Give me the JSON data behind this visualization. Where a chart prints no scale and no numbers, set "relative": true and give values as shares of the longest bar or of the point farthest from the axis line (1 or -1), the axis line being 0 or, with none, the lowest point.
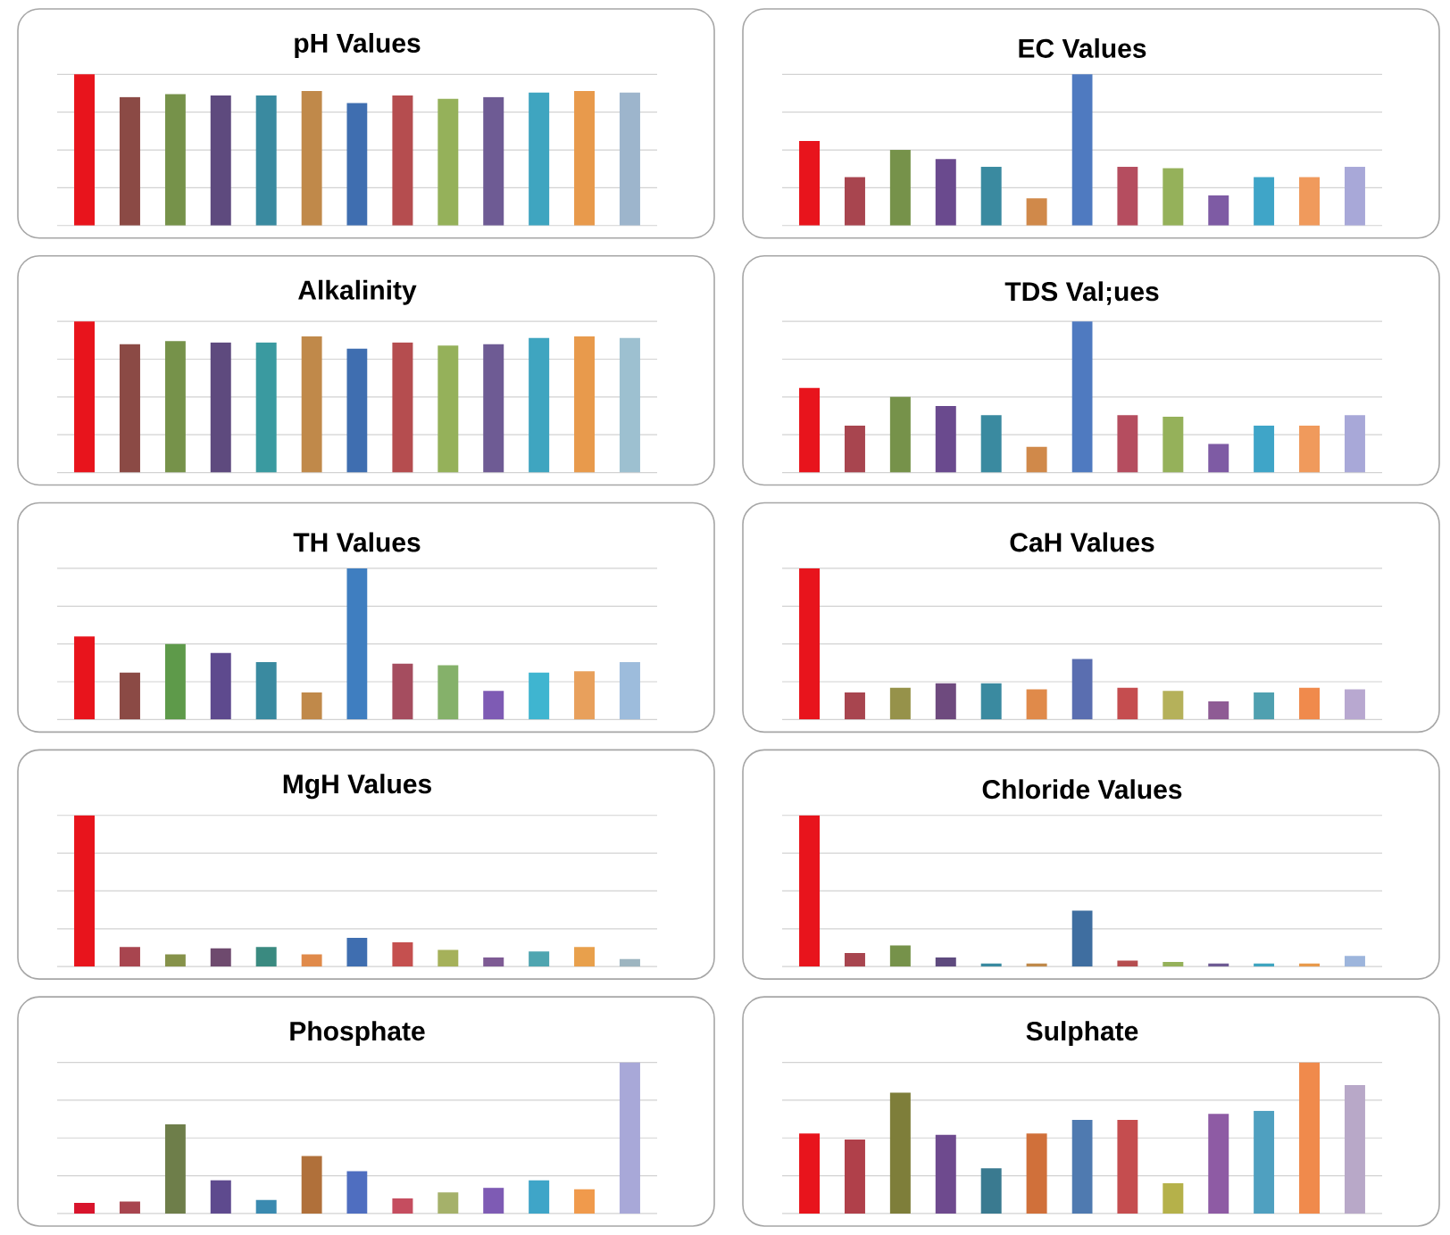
{
  "chart_data": [
    {
      "type": "bar",
      "title": "pH Values",
      "categories": [
        null,
        null,
        null,
        null,
        null,
        null,
        null,
        null,
        null,
        null,
        null,
        null,
        null
      ],
      "values": [
        1,
        0.85,
        0.87,
        0.86,
        0.86,
        0.89,
        0.81,
        0.86,
        0.84,
        0.85,
        0.88,
        0.89,
        0.88
      ],
      "colors": [
        "#e8141c",
        "#8b4a45",
        "#76924a",
        "#5e4a7e",
        "#3a8aa0",
        "#c0894a",
        "#3f6eb0",
        "#b54d4f",
        "#95b15a",
        "#6e5b94",
        "#3fa5c0",
        "#e89a4c",
        "#9db5cc"
      ],
      "relative": true,
      "grid": "y"
    },
    {
      "type": "bar",
      "title": "EC Values",
      "categories": [
        null,
        null,
        null,
        null,
        null,
        null,
        null,
        null,
        null,
        null,
        null,
        null,
        null
      ],
      "values": [
        0.56,
        0.32,
        0.5,
        0.44,
        0.39,
        0.18,
        1,
        0.39,
        0.38,
        0.2,
        0.32,
        0.32,
        0.39
      ],
      "colors": [
        "#e8141c",
        "#a8454f",
        "#76924a",
        "#6a4a8e",
        "#3a8aa0",
        "#d0894a",
        "#4f7ac0",
        "#b54d5f",
        "#95b15a",
        "#7e5ba4",
        "#3fa5c8",
        "#f09a5c",
        "#a8a8d8"
      ],
      "relative": true,
      "grid": "y"
    },
    {
      "type": "bar",
      "title": "Alkalinity",
      "categories": [
        null,
        null,
        null,
        null,
        null,
        null,
        null,
        null,
        null,
        null,
        null,
        null,
        null
      ],
      "values": [
        1,
        0.85,
        0.87,
        0.86,
        0.86,
        0.9,
        0.82,
        0.86,
        0.84,
        0.85,
        0.89,
        0.9,
        0.89
      ],
      "colors": [
        "#e8141c",
        "#8b4a45",
        "#76924a",
        "#5e4a7e",
        "#3a9aa0",
        "#c0894a",
        "#3f6eb0",
        "#b54d4f",
        "#95b15a",
        "#6e5b94",
        "#3fa5c0",
        "#e89a4c",
        "#9dc0d0"
      ],
      "relative": true,
      "grid": "y"
    },
    {
      "type": "bar",
      "title": "TDS Val;ues",
      "categories": [
        null,
        null,
        null,
        null,
        null,
        null,
        null,
        null,
        null,
        null,
        null,
        null,
        null
      ],
      "values": [
        0.56,
        0.31,
        0.5,
        0.44,
        0.38,
        0.17,
        1,
        0.38,
        0.37,
        0.19,
        0.31,
        0.31,
        0.38
      ],
      "colors": [
        "#e8141c",
        "#a8454f",
        "#76924a",
        "#6a4a8e",
        "#3a8aa0",
        "#d0894a",
        "#4f7ac0",
        "#b54d5f",
        "#95b15a",
        "#7e5ba4",
        "#3fa5c8",
        "#f09a5c",
        "#a8a8d8"
      ],
      "relative": true,
      "grid": "y"
    },
    {
      "type": "bar",
      "title": "TH Values",
      "categories": [
        null,
        null,
        null,
        null,
        null,
        null,
        null,
        null,
        null,
        null,
        null,
        null,
        null
      ],
      "values": [
        0.55,
        0.31,
        0.5,
        0.44,
        0.38,
        0.18,
        1,
        0.37,
        0.36,
        0.19,
        0.31,
        0.32,
        0.38
      ],
      "colors": [
        "#e8141c",
        "#8b4a45",
        "#5e9a4a",
        "#5e4a8e",
        "#3a8aa0",
        "#c0894a",
        "#3f7ec0",
        "#a54d5f",
        "#85b16a",
        "#7e5bb4",
        "#3fb5d0",
        "#e8a05c",
        "#9dbcdc"
      ],
      "relative": true,
      "grid": "y"
    },
    {
      "type": "bar",
      "title": "CaH Values",
      "categories": [
        null,
        null,
        null,
        null,
        null,
        null,
        null,
        null,
        null,
        null,
        null,
        null,
        null
      ],
      "values": [
        1,
        0.18,
        0.21,
        0.24,
        0.24,
        0.2,
        0.4,
        0.21,
        0.19,
        0.12,
        0.18,
        0.21,
        0.2
      ],
      "colors": [
        "#e8141c",
        "#a8454f",
        "#96924a",
        "#6e4a7e",
        "#3a8aa0",
        "#e08a4a",
        "#5a6eb0",
        "#c54d4f",
        "#b5b15a",
        "#8e5b94",
        "#4fa0b0",
        "#f08a4c",
        "#b8a8d0"
      ],
      "relative": true,
      "grid": "y"
    },
    {
      "type": "bar",
      "title": "MgH Values",
      "categories": [
        null,
        null,
        null,
        null,
        null,
        null,
        null,
        null,
        null,
        null,
        null,
        null,
        null
      ],
      "values": [
        1,
        0.13,
        0.08,
        0.12,
        0.13,
        0.08,
        0.19,
        0.16,
        0.11,
        0.06,
        0.1,
        0.13,
        0.05
      ],
      "colors": [
        "#e8141c",
        "#a8454f",
        "#86924a",
        "#6e4a6e",
        "#3a8a80",
        "#e08a4a",
        "#3f6eb0",
        "#c5504f",
        "#a5b15a",
        "#7e5b94",
        "#4fa5b0",
        "#e8a04c",
        "#9db5c0"
      ],
      "relative": true,
      "grid": "y"
    },
    {
      "type": "bar",
      "title": "Chloride Values",
      "categories": [
        null,
        null,
        null,
        null,
        null,
        null,
        null,
        null,
        null,
        null,
        null,
        null,
        null
      ],
      "values": [
        1,
        0.09,
        0.14,
        0.06,
        0.02,
        0.02,
        0.37,
        0.04,
        0.03,
        0.02,
        0.02,
        0.02,
        0.07
      ],
      "colors": [
        "#e8141c",
        "#a8454f",
        "#76924a",
        "#5e4a7e",
        "#3a8aa0",
        "#c0894a",
        "#3f6ea0",
        "#b54d4f",
        "#95b15a",
        "#6e5b94",
        "#3fa5c0",
        "#e89a4c",
        "#9db5dc"
      ],
      "relative": true,
      "grid": "y"
    },
    {
      "type": "bar",
      "title": "Phosphate",
      "categories": [
        null,
        null,
        null,
        null,
        null,
        null,
        null,
        null,
        null,
        null,
        null,
        null,
        null
      ],
      "values": [
        0.07,
        0.08,
        0.59,
        0.22,
        0.09,
        0.38,
        0.28,
        0.1,
        0.14,
        0.17,
        0.22,
        0.16,
        1
      ],
      "colors": [
        "#d8142c",
        "#a8454f",
        "#6e7e4a",
        "#5e4a8e",
        "#3a8ab0",
        "#b0703a",
        "#4f6ec0",
        "#c54d5f",
        "#a5b16a",
        "#7e5bb4",
        "#3fa5c8",
        "#f09a4c",
        "#a8a8d8"
      ],
      "relative": true,
      "grid": "y"
    },
    {
      "type": "bar",
      "title": "Sulphate",
      "categories": [
        null,
        null,
        null,
        null,
        null,
        null,
        null,
        null,
        null,
        null,
        null,
        null,
        null
      ],
      "values": [
        0.53,
        0.49,
        0.8,
        0.52,
        0.3,
        0.53,
        0.62,
        0.62,
        0.2,
        0.66,
        0.68,
        1,
        0.85
      ],
      "colors": [
        "#e8141c",
        "#b0404a",
        "#7e7e3a",
        "#6e4a8e",
        "#3a7a90",
        "#d0703a",
        "#4f7ab0",
        "#c54d4f",
        "#b5b14a",
        "#8e5ba4",
        "#4fa0c0",
        "#f08a4c",
        "#b8a8c8"
      ],
      "relative": true,
      "grid": "y"
    }
  ]
}
